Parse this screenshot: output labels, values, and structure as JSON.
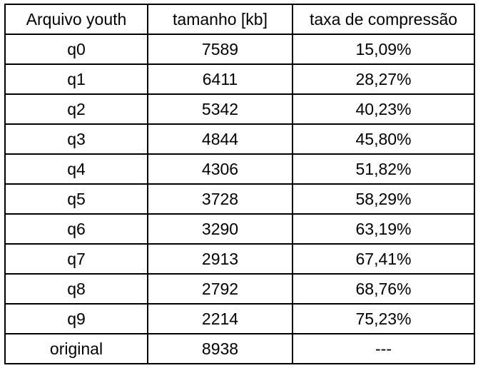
{
  "chart_data": {
    "type": "table",
    "columns": [
      "Arquivo youth",
      "tamanho [kb]",
      "taxa de compressão"
    ],
    "rows": [
      [
        "q0",
        "7589",
        "15,09%"
      ],
      [
        "q1",
        "6411",
        "28,27%"
      ],
      [
        "q2",
        "5342",
        "40,23%"
      ],
      [
        "q3",
        "4844",
        "45,80%"
      ],
      [
        "q4",
        "4306",
        "51,82%"
      ],
      [
        "q5",
        "3728",
        "58,29%"
      ],
      [
        "q6",
        "3290",
        "63,19%"
      ],
      [
        "q7",
        "2913",
        "67,41%"
      ],
      [
        "q8",
        "2792",
        "68,76%"
      ],
      [
        "q9",
        "2214",
        "75,23%"
      ],
      [
        "original",
        "8938",
        "---"
      ]
    ]
  }
}
